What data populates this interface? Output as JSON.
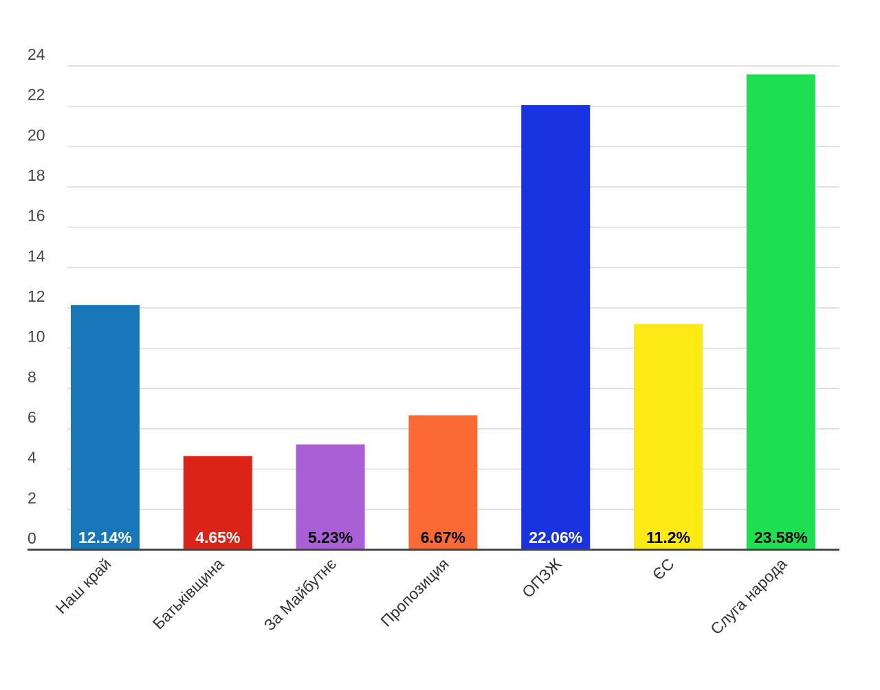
{
  "chart_data": {
    "type": "bar",
    "title": "",
    "xlabel": "",
    "ylabel": "",
    "ylim": [
      0,
      24
    ],
    "yticks": [
      0,
      2,
      4,
      6,
      8,
      10,
      12,
      14,
      16,
      18,
      20,
      22,
      24
    ],
    "grid": true,
    "legend": "none",
    "categories": [
      "Наш край",
      "Батьківщина",
      "За Майбутнє",
      "Пропозиция",
      "ОПЗЖ",
      "ЄС",
      "Слуга народа"
    ],
    "values": [
      12.14,
      4.65,
      5.23,
      6.67,
      22.06,
      11.2,
      23.58
    ],
    "data_labels": [
      "12.14%",
      "4.65%",
      "5.23%",
      "6.67%",
      "22.06%",
      "11.2%",
      "23.58%"
    ],
    "colors": [
      "#1777b8",
      "#dc2318",
      "#ab5fd6",
      "#fb6a35",
      "#1a33e0",
      "#fdea14",
      "#1ce04f"
    ],
    "label_colors": [
      "#ffffff",
      "#ffffff",
      "#000000",
      "#000000",
      "#ffffff",
      "#000000",
      "#000000"
    ]
  }
}
